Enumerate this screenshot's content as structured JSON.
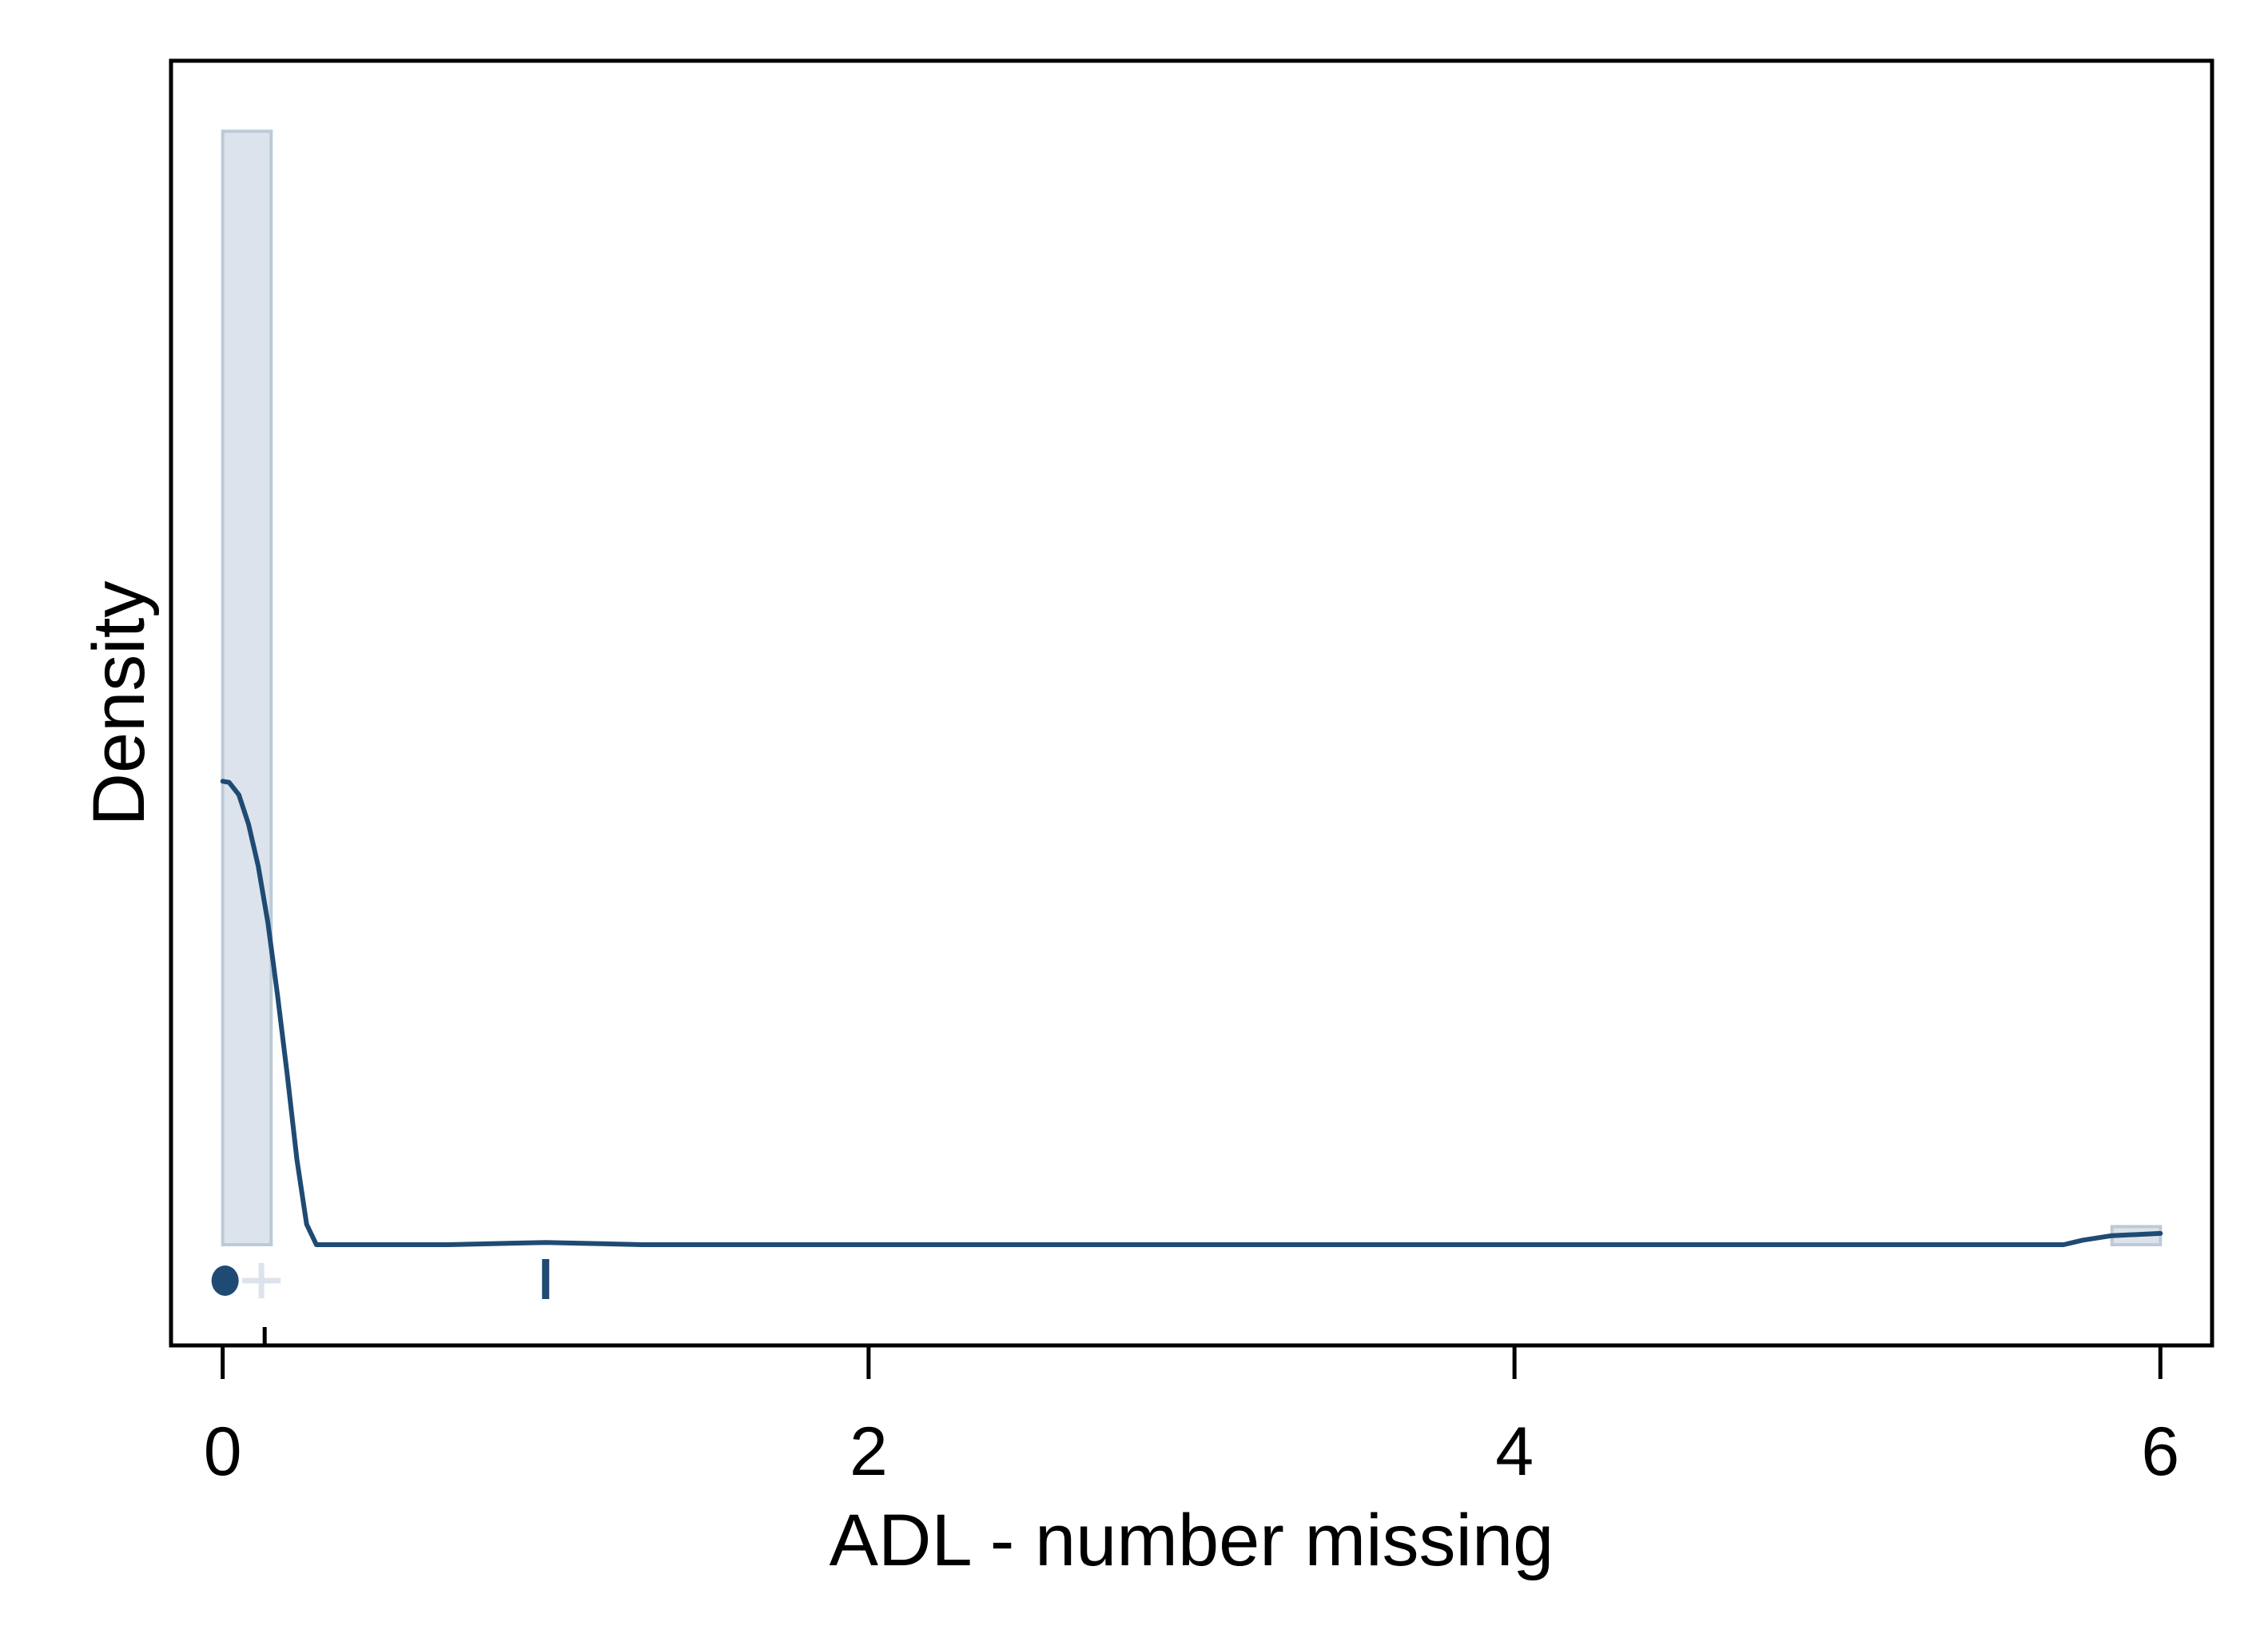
{
  "chart_data": {
    "type": "area",
    "title": "",
    "xlabel": "ADL - number missing",
    "ylabel": "Density",
    "xlim": [
      -0.16,
      6.16
    ],
    "ylim": [
      0,
      1
    ],
    "x_ticks": [
      0,
      2,
      4,
      6
    ],
    "x_tick_labels": [
      "0",
      "2",
      "4",
      "6"
    ],
    "y_ticks": [],
    "grid": false,
    "legend": "none",
    "histogram": {
      "color": "#dce3ec",
      "edge_color": "#bccad8",
      "bins": [
        {
          "x0": 0.0,
          "x1": 0.15,
          "density": 0.985
        },
        {
          "x0": 5.85,
          "x1": 6.0,
          "density": 0.016
        }
      ]
    },
    "density_curve": {
      "color": "#1f4a73",
      "x": [
        0,
        0.02,
        0.05,
        0.08,
        0.11,
        0.14,
        0.17,
        0.2,
        0.23,
        0.26,
        0.29,
        0.3,
        0.7,
        1.0,
        1.3,
        2.0,
        3.0,
        4.0,
        5.0,
        5.7,
        5.76,
        5.85,
        6.0
      ],
      "y": [
        0.41,
        0.409,
        0.398,
        0.372,
        0.335,
        0.285,
        0.22,
        0.15,
        0.075,
        0.018,
        0.0,
        0.0,
        0.0,
        0.002,
        0.0,
        0.0,
        0.0,
        0.0,
        0.0,
        0.0,
        0.004,
        0.008,
        0.01
      ]
    },
    "markers": [
      {
        "symbol": "dot",
        "x": 0,
        "color": "#1f4a73"
      },
      {
        "symbol": "plus",
        "x": 0.12,
        "color": "#dce3ec"
      },
      {
        "symbol": "bar",
        "x": 1.0,
        "color": "#1f4a73"
      },
      {
        "symbol": "baseline-tick",
        "x": 0.13,
        "color": "#000000"
      }
    ]
  }
}
